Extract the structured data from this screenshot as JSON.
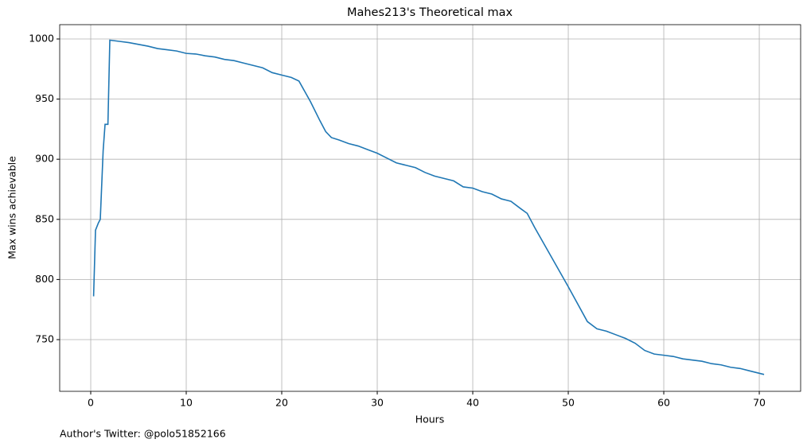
{
  "chart_data": {
    "type": "line",
    "title": "Mahes213's Theoretical max",
    "xlabel": "Hours",
    "ylabel": "Max wins achievable",
    "annotation": "Author's Twitter: @polo51852166",
    "x": [
      0.3,
      0.5,
      0.8,
      1.0,
      1.3,
      1.5,
      1.8,
      2.0,
      3,
      4,
      5,
      6,
      7,
      8,
      9,
      10,
      11,
      12,
      13,
      14,
      15,
      16,
      17,
      18,
      19,
      20,
      21,
      21.8,
      23,
      24,
      24.6,
      25.2,
      26,
      27,
      28,
      29,
      30,
      31,
      32,
      33,
      34,
      35,
      36,
      37,
      38,
      39,
      40,
      41,
      42,
      43,
      44,
      45,
      45.7,
      46.5,
      48,
      50,
      52,
      53,
      54,
      55,
      56,
      57,
      58,
      59,
      60,
      61,
      62,
      63,
      64,
      65,
      66,
      67,
      68,
      69,
      70,
      70.5
    ],
    "series": [
      {
        "name": "Max wins achievable",
        "color": "#1f77b4",
        "values": [
          786,
          841,
          847,
          850,
          907,
          929,
          929,
          999,
          998,
          997,
          995.5,
          994,
          992,
          991,
          990,
          988,
          987.5,
          986,
          985,
          983,
          982,
          980,
          978,
          976,
          972,
          970,
          968,
          965,
          948,
          932,
          923,
          918,
          916,
          913,
          911,
          908,
          905,
          901,
          897,
          895,
          893,
          889,
          886,
          884,
          882,
          877,
          876,
          873,
          871,
          867,
          865,
          859,
          855,
          843,
          822,
          794,
          765,
          759,
          757,
          754,
          751,
          747,
          741,
          738,
          737,
          736,
          734,
          733,
          732,
          730,
          729,
          727,
          726,
          724,
          722,
          721
        ]
      }
    ],
    "xlim": [
      -3.25,
      74.33
    ],
    "ylim": [
      707,
      1011.9
    ],
    "xticks": [
      0,
      10,
      20,
      30,
      40,
      50,
      60,
      70
    ],
    "yticks": [
      750,
      800,
      850,
      900,
      950,
      1000
    ],
    "grid": true
  }
}
